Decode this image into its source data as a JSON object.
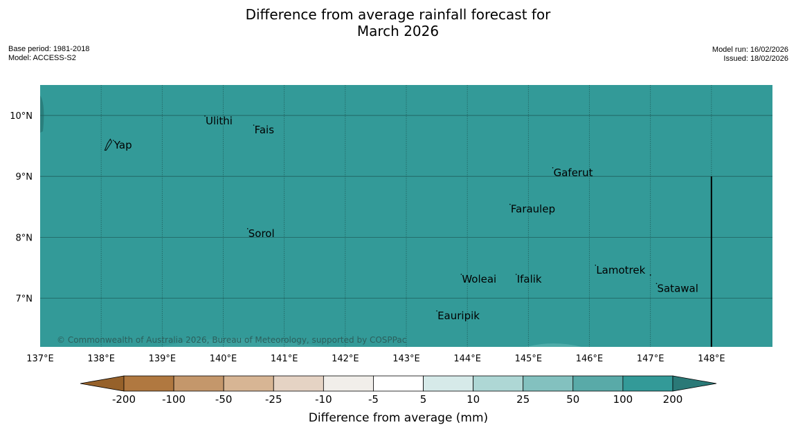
{
  "title_line1": "Difference from average rainfall forecast for",
  "title_line2": "March 2026",
  "meta_left": {
    "base_period": "Base period: 1981-2018",
    "model": "Model: ACCESS-S2"
  },
  "meta_right": {
    "model_run": "Model run: 16/02/2026",
    "issued": "Issued: 18/02/2026"
  },
  "map": {
    "lon_range": [
      137,
      149
    ],
    "lat_range": [
      6.2,
      10.5
    ],
    "background_color": "#339a98",
    "lon_ticks": [
      {
        "value": 137,
        "label": "137°E"
      },
      {
        "value": 138,
        "label": "138°E"
      },
      {
        "value": 139,
        "label": "139°E"
      },
      {
        "value": 140,
        "label": "140°E"
      },
      {
        "value": 141,
        "label": "141°E"
      },
      {
        "value": 142,
        "label": "142°E"
      },
      {
        "value": 143,
        "label": "143°E"
      },
      {
        "value": 144,
        "label": "144°E"
      },
      {
        "value": 145,
        "label": "145°E"
      },
      {
        "value": 146,
        "label": "146°E"
      },
      {
        "value": 147,
        "label": "147°E"
      },
      {
        "value": 148,
        "label": "148°E"
      }
    ],
    "lat_ticks": [
      {
        "value": 10,
        "label": "10°N"
      },
      {
        "value": 9,
        "label": "9°N"
      },
      {
        "value": 8,
        "label": "8°N"
      },
      {
        "value": 7,
        "label": "7°N"
      }
    ],
    "places": [
      {
        "name": "Yap",
        "lon": 138.2,
        "lat": 9.5
      },
      {
        "name": "Ulithi",
        "lon": 139.7,
        "lat": 9.9
      },
      {
        "name": "Fais",
        "lon": 140.5,
        "lat": 9.75
      },
      {
        "name": "Gaferut",
        "lon": 145.4,
        "lat": 9.05
      },
      {
        "name": "Faraulep",
        "lon": 144.7,
        "lat": 8.45
      },
      {
        "name": "Sorol",
        "lon": 140.4,
        "lat": 8.05
      },
      {
        "name": "Woleai",
        "lon": 143.9,
        "lat": 7.3
      },
      {
        "name": "Ifalik",
        "lon": 144.8,
        "lat": 7.3
      },
      {
        "name": "Lamotrek",
        "lon": 146.1,
        "lat": 7.45
      },
      {
        "name": "Satawal",
        "lon": 147.1,
        "lat": 7.15
      },
      {
        "name": "Eauripik",
        "lon": 143.5,
        "lat": 6.7
      }
    ],
    "copyright": "© Commonwealth of Australia 2026, Bureau of Meteorology, supported by COSPPac"
  },
  "colorbar": {
    "label": "Difference from average (mm)",
    "ticks": [
      "-200",
      "-100",
      "-50",
      "-25",
      "-10",
      "-5",
      "5",
      "10",
      "25",
      "50",
      "100",
      "200"
    ],
    "colors": [
      "#96612a",
      "#b07840",
      "#c4976b",
      "#d7b594",
      "#e5d3c4",
      "#f1eeea",
      "#ffffff",
      "#d6eae9",
      "#aed7d5",
      "#83c1bf",
      "#59aaa8",
      "#339a98",
      "#2a7977"
    ]
  }
}
